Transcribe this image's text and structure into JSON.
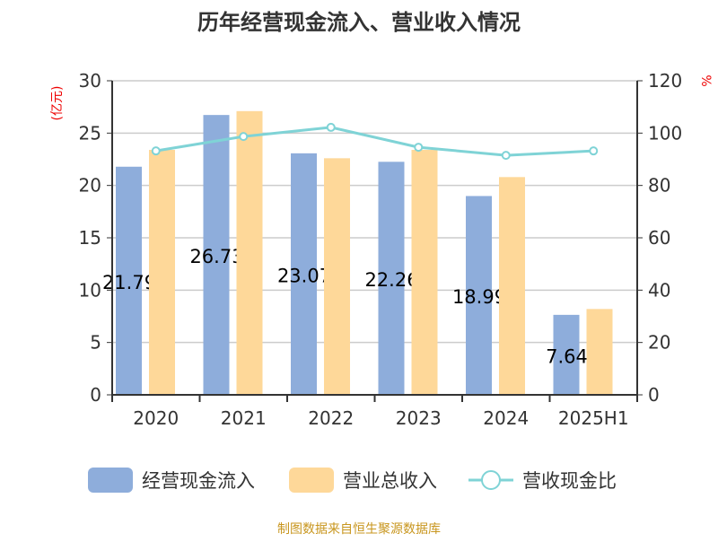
{
  "chart_data": {
    "type": "bar",
    "title": "历年经营现金流入、营业收入情况",
    "categories": [
      "2020",
      "2021",
      "2022",
      "2023",
      "2024",
      "2025H1"
    ],
    "left_axis": {
      "label": "(亿元)",
      "range": [
        0,
        30
      ],
      "ticks": [
        0,
        5,
        10,
        15,
        20,
        25,
        30
      ]
    },
    "right_axis": {
      "label": "%",
      "range": [
        0,
        120
      ],
      "ticks": [
        0,
        20,
        40,
        60,
        80,
        100,
        120
      ]
    },
    "grid": true,
    "legend_position": "bottom",
    "series": [
      {
        "name": "经营现金流入",
        "type": "bar",
        "axis": "left",
        "color": "#8eaddb",
        "values": [
          21.79,
          26.73,
          23.07,
          22.26,
          18.99,
          7.64
        ],
        "data_labels": [
          "21.79",
          "26.73",
          "23.07",
          "22.26",
          "18.99",
          "7.64"
        ]
      },
      {
        "name": "营业总收入",
        "type": "bar",
        "axis": "left",
        "color": "#fed899",
        "values": [
          23.4,
          27.1,
          22.6,
          23.4,
          20.8,
          8.2
        ]
      },
      {
        "name": "营收现金比",
        "type": "line",
        "axis": "right",
        "color": "#7fd3d6",
        "values": [
          93.2,
          98.7,
          102.2,
          94.6,
          91.5,
          93.2
        ]
      }
    ],
    "source": "制图数据来自恒生聚源数据库"
  }
}
